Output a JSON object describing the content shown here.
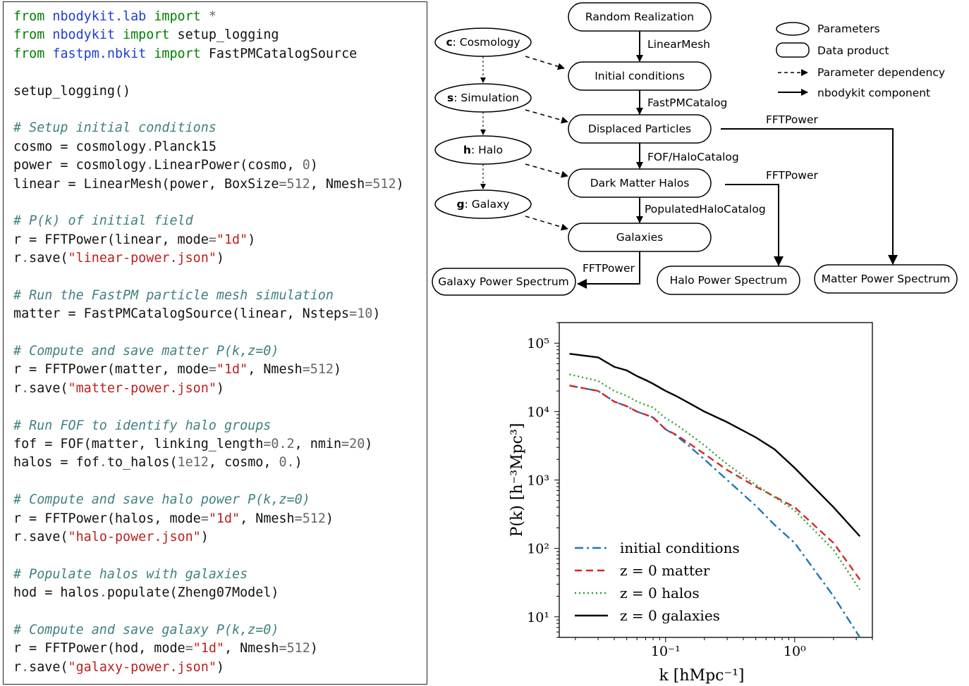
{
  "code": {
    "lines": [
      [
        [
          "kw",
          "from "
        ],
        [
          "mod",
          "nbodykit.lab"
        ],
        [
          "kw",
          " import"
        ],
        [
          "op",
          " *"
        ]
      ],
      [
        [
          "kw",
          "from "
        ],
        [
          "mod",
          "nbodykit"
        ],
        [
          "kw",
          " import"
        ],
        [
          "txt",
          " setup_logging"
        ]
      ],
      [
        [
          "kw",
          "from "
        ],
        [
          "mod",
          "fastpm.nbkit"
        ],
        [
          "kw",
          " import"
        ],
        [
          "txt",
          " FastPMCatalogSource"
        ]
      ],
      [],
      [
        [
          "txt",
          "setup_logging()"
        ]
      ],
      [],
      [
        [
          "com",
          "# Setup initial conditions"
        ]
      ],
      [
        [
          "txt",
          "cosmo = cosmology"
        ],
        [
          "op",
          "."
        ],
        [
          "txt",
          "Planck15"
        ]
      ],
      [
        [
          "txt",
          "power = cosmology"
        ],
        [
          "op",
          "."
        ],
        [
          "txt",
          "LinearPower(cosmo, "
        ],
        [
          "num",
          "0"
        ],
        [
          "txt",
          ")"
        ]
      ],
      [
        [
          "txt",
          "linear = LinearMesh(power, BoxSize"
        ],
        [
          "op",
          "="
        ],
        [
          "num",
          "512"
        ],
        [
          "txt",
          ", Nmesh"
        ],
        [
          "op",
          "="
        ],
        [
          "num",
          "512"
        ],
        [
          "txt",
          ")"
        ]
      ],
      [],
      [
        [
          "com",
          "# P(k) of initial field"
        ]
      ],
      [
        [
          "txt",
          "r = FFTPower(linear, mode"
        ],
        [
          "op",
          "="
        ],
        [
          "str",
          "\"1d\""
        ],
        [
          "txt",
          ")"
        ]
      ],
      [
        [
          "txt",
          "r"
        ],
        [
          "op",
          "."
        ],
        [
          "txt",
          "save("
        ],
        [
          "str",
          "\"linear-power.json\""
        ],
        [
          "txt",
          ")"
        ]
      ],
      [],
      [
        [
          "com",
          "# Run the FastPM particle mesh simulation"
        ]
      ],
      [
        [
          "txt",
          "matter = FastPMCatalogSource(linear, Nsteps"
        ],
        [
          "op",
          "="
        ],
        [
          "num",
          "10"
        ],
        [
          "txt",
          ")"
        ]
      ],
      [],
      [
        [
          "com",
          "# Compute and save matter P(k,z=0)"
        ]
      ],
      [
        [
          "txt",
          "r = FFTPower(matter, mode"
        ],
        [
          "op",
          "="
        ],
        [
          "str",
          "\"1d\""
        ],
        [
          "txt",
          ", Nmesh"
        ],
        [
          "op",
          "="
        ],
        [
          "num",
          "512"
        ],
        [
          "txt",
          ")"
        ]
      ],
      [
        [
          "txt",
          "r"
        ],
        [
          "op",
          "."
        ],
        [
          "txt",
          "save("
        ],
        [
          "str",
          "\"matter-power.json\""
        ],
        [
          "txt",
          ")"
        ]
      ],
      [],
      [
        [
          "com",
          "# Run FOF to identify halo groups"
        ]
      ],
      [
        [
          "txt",
          "fof = FOF(matter, linking_length"
        ],
        [
          "op",
          "="
        ],
        [
          "num",
          "0.2"
        ],
        [
          "txt",
          ", nmin"
        ],
        [
          "op",
          "="
        ],
        [
          "num",
          "20"
        ],
        [
          "txt",
          ")"
        ]
      ],
      [
        [
          "txt",
          "halos = fof"
        ],
        [
          "op",
          "."
        ],
        [
          "txt",
          "to_halos("
        ],
        [
          "num",
          "1e12"
        ],
        [
          "txt",
          ", cosmo, "
        ],
        [
          "num",
          "0."
        ],
        [
          "txt",
          ")"
        ]
      ],
      [],
      [
        [
          "com",
          "# Compute and save halo power P(k,z=0)"
        ]
      ],
      [
        [
          "txt",
          "r = FFTPower(halos, mode"
        ],
        [
          "op",
          "="
        ],
        [
          "str",
          "\"1d\""
        ],
        [
          "txt",
          ", Nmesh"
        ],
        [
          "op",
          "="
        ],
        [
          "num",
          "512"
        ],
        [
          "txt",
          ")"
        ]
      ],
      [
        [
          "txt",
          "r"
        ],
        [
          "op",
          "."
        ],
        [
          "txt",
          "save("
        ],
        [
          "str",
          "\"halo-power.json\""
        ],
        [
          "txt",
          ")"
        ]
      ],
      [],
      [
        [
          "com",
          "# Populate halos with galaxies"
        ]
      ],
      [
        [
          "txt",
          "hod = halos"
        ],
        [
          "op",
          "."
        ],
        [
          "txt",
          "populate(Zheng07Model)"
        ]
      ],
      [],
      [
        [
          "com",
          "# Compute and save galaxy P(k,z=0)"
        ]
      ],
      [
        [
          "txt",
          "r = FFTPower(hod, mode"
        ],
        [
          "op",
          "="
        ],
        [
          "str",
          "\"1d\""
        ],
        [
          "txt",
          ", Nmesh"
        ],
        [
          "op",
          "="
        ],
        [
          "num",
          "512"
        ],
        [
          "txt",
          ")"
        ]
      ],
      [
        [
          "txt",
          "r"
        ],
        [
          "op",
          "."
        ],
        [
          "txt",
          "save("
        ],
        [
          "str",
          "\"galaxy-power.json\""
        ],
        [
          "txt",
          ")"
        ]
      ]
    ]
  },
  "diagram": {
    "param_nodes": [
      {
        "bold": "c",
        "rest": ": Cosmology"
      },
      {
        "bold": "s",
        "rest": ": Simulation"
      },
      {
        "bold": "h",
        "rest": ": Halo"
      },
      {
        "bold": "g",
        "rest": ": Galaxy"
      }
    ],
    "data_nodes": {
      "random": "Random Realization",
      "initial": "Initial conditions",
      "displaced": "Displaced Particles",
      "halos": "Dark Matter Halos",
      "galaxies": "Galaxies",
      "galaxy_ps": "Galaxy Power Spectrum",
      "halo_ps": "Halo Power Spectrum",
      "matter_ps": "Matter Power Spectrum"
    },
    "edge_labels": {
      "linearmesh": "LinearMesh",
      "fastpmcatalog": "FastPMCatalog",
      "fof": "FOF/HaloCatalog",
      "populated": "PopulatedHaloCatalog",
      "fft_galaxy": "FFTPower",
      "fft_halo": "FFTPower",
      "fft_matter": "FFTPower"
    },
    "legend": {
      "parameters": "Parameters",
      "data_product": "Data product",
      "param_dep": "Parameter dependency",
      "component": "nbodykit component"
    }
  },
  "chart_data": {
    "type": "line",
    "xscale": "log",
    "yscale": "log",
    "xlim": [
      0.015,
      4.0
    ],
    "ylim": [
      5,
      200000
    ],
    "xlabel": "k [hMpc⁻¹]",
    "ylabel": "P(k) [h⁻³Mpc³]",
    "x_tick_labels": [
      "10⁻¹",
      "10⁰"
    ],
    "y_tick_labels": [
      "10¹",
      "10²",
      "10³",
      "10⁴",
      "10⁵"
    ],
    "grid": false,
    "legend_position": "lower-left",
    "series": [
      {
        "name": "initial conditions",
        "color": "#1f77b4",
        "dash": "dashdot",
        "x": [
          0.018,
          0.03,
          0.04,
          0.05,
          0.06,
          0.07,
          0.08,
          0.1,
          0.12,
          0.15,
          0.2,
          0.3,
          0.5,
          0.7,
          1.0,
          2.0,
          3.2
        ],
        "y": [
          24000,
          20000,
          14000,
          12000,
          10000,
          9000,
          8200,
          5500,
          4500,
          3200,
          2000,
          1000,
          420,
          220,
          120,
          20,
          5
        ]
      },
      {
        "name": "z = 0 matter",
        "color": "#d62728",
        "dash": "dashed",
        "x": [
          0.018,
          0.03,
          0.04,
          0.05,
          0.06,
          0.07,
          0.08,
          0.1,
          0.12,
          0.15,
          0.2,
          0.3,
          0.5,
          0.7,
          1.0,
          2.0,
          3.2
        ],
        "y": [
          24000,
          20000,
          14000,
          12000,
          10000,
          9000,
          8200,
          5500,
          4600,
          3500,
          2400,
          1400,
          800,
          570,
          400,
          120,
          35
        ]
      },
      {
        "name": "z = 0 halos",
        "color": "#2ca02c",
        "dash": "dotted",
        "x": [
          0.018,
          0.03,
          0.04,
          0.05,
          0.06,
          0.07,
          0.08,
          0.1,
          0.12,
          0.15,
          0.2,
          0.3,
          0.5,
          0.7,
          1.0,
          2.0,
          3.2
        ],
        "y": [
          35000,
          28000,
          20000,
          17000,
          14000,
          12500,
          11500,
          8000,
          6500,
          4800,
          3200,
          1700,
          850,
          560,
          360,
          95,
          25
        ]
      },
      {
        "name": "z = 0 galaxies",
        "color": "#000000",
        "dash": "solid",
        "x": [
          0.018,
          0.03,
          0.04,
          0.05,
          0.06,
          0.07,
          0.08,
          0.1,
          0.12,
          0.15,
          0.2,
          0.3,
          0.5,
          0.7,
          1.0,
          2.0,
          3.2
        ],
        "y": [
          70000,
          62000,
          45000,
          40000,
          33000,
          29000,
          25500,
          20000,
          17000,
          13500,
          10000,
          7000,
          4200,
          2800,
          1500,
          400,
          150
        ]
      }
    ]
  }
}
